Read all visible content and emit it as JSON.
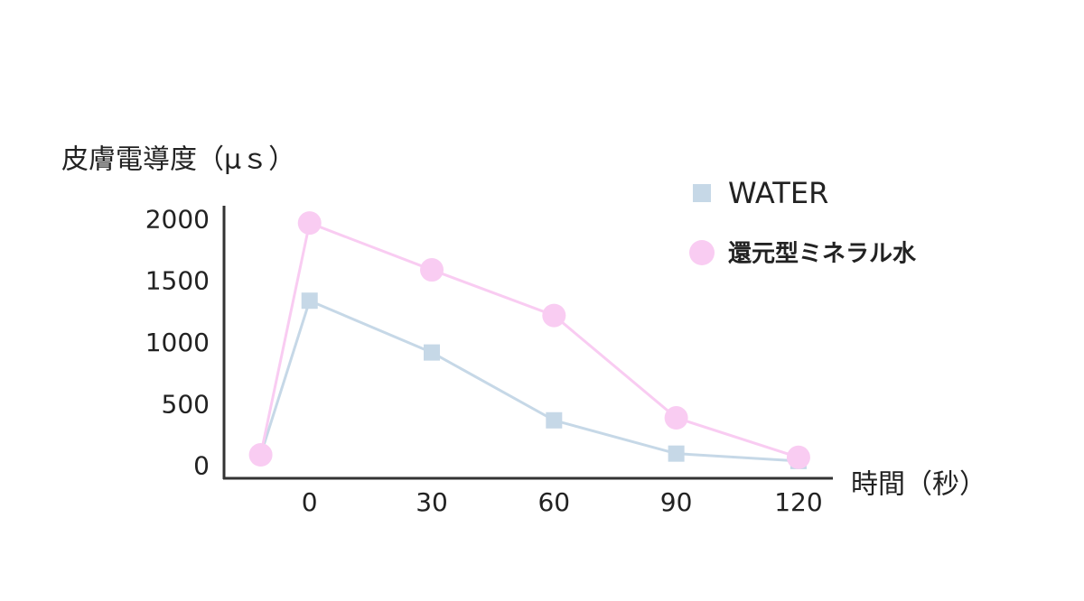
{
  "chart_data": {
    "type": "line",
    "y_label": "皮膚電導度（μｓ）",
    "x_label": "時間（秒）",
    "x": [
      -12,
      0,
      30,
      60,
      90,
      120
    ],
    "series": [
      {
        "name": "WATER",
        "color": "#c6d8e7",
        "marker": "square",
        "values": [
          100,
          1350,
          930,
          380,
          110,
          50
        ]
      },
      {
        "name": "還元型ミネラル水",
        "color": "#f9ccf2",
        "marker": "circle",
        "values": [
          100,
          1980,
          1600,
          1230,
          400,
          80
        ]
      }
    ],
    "xlim": [
      -21,
      128
    ],
    "xticks": [
      0,
      30,
      60,
      90,
      120
    ],
    "ylim": [
      -90,
      2120
    ],
    "yticks": [
      0,
      500,
      1000,
      1500,
      2000
    ],
    "grid": false,
    "legend": "top-right"
  }
}
